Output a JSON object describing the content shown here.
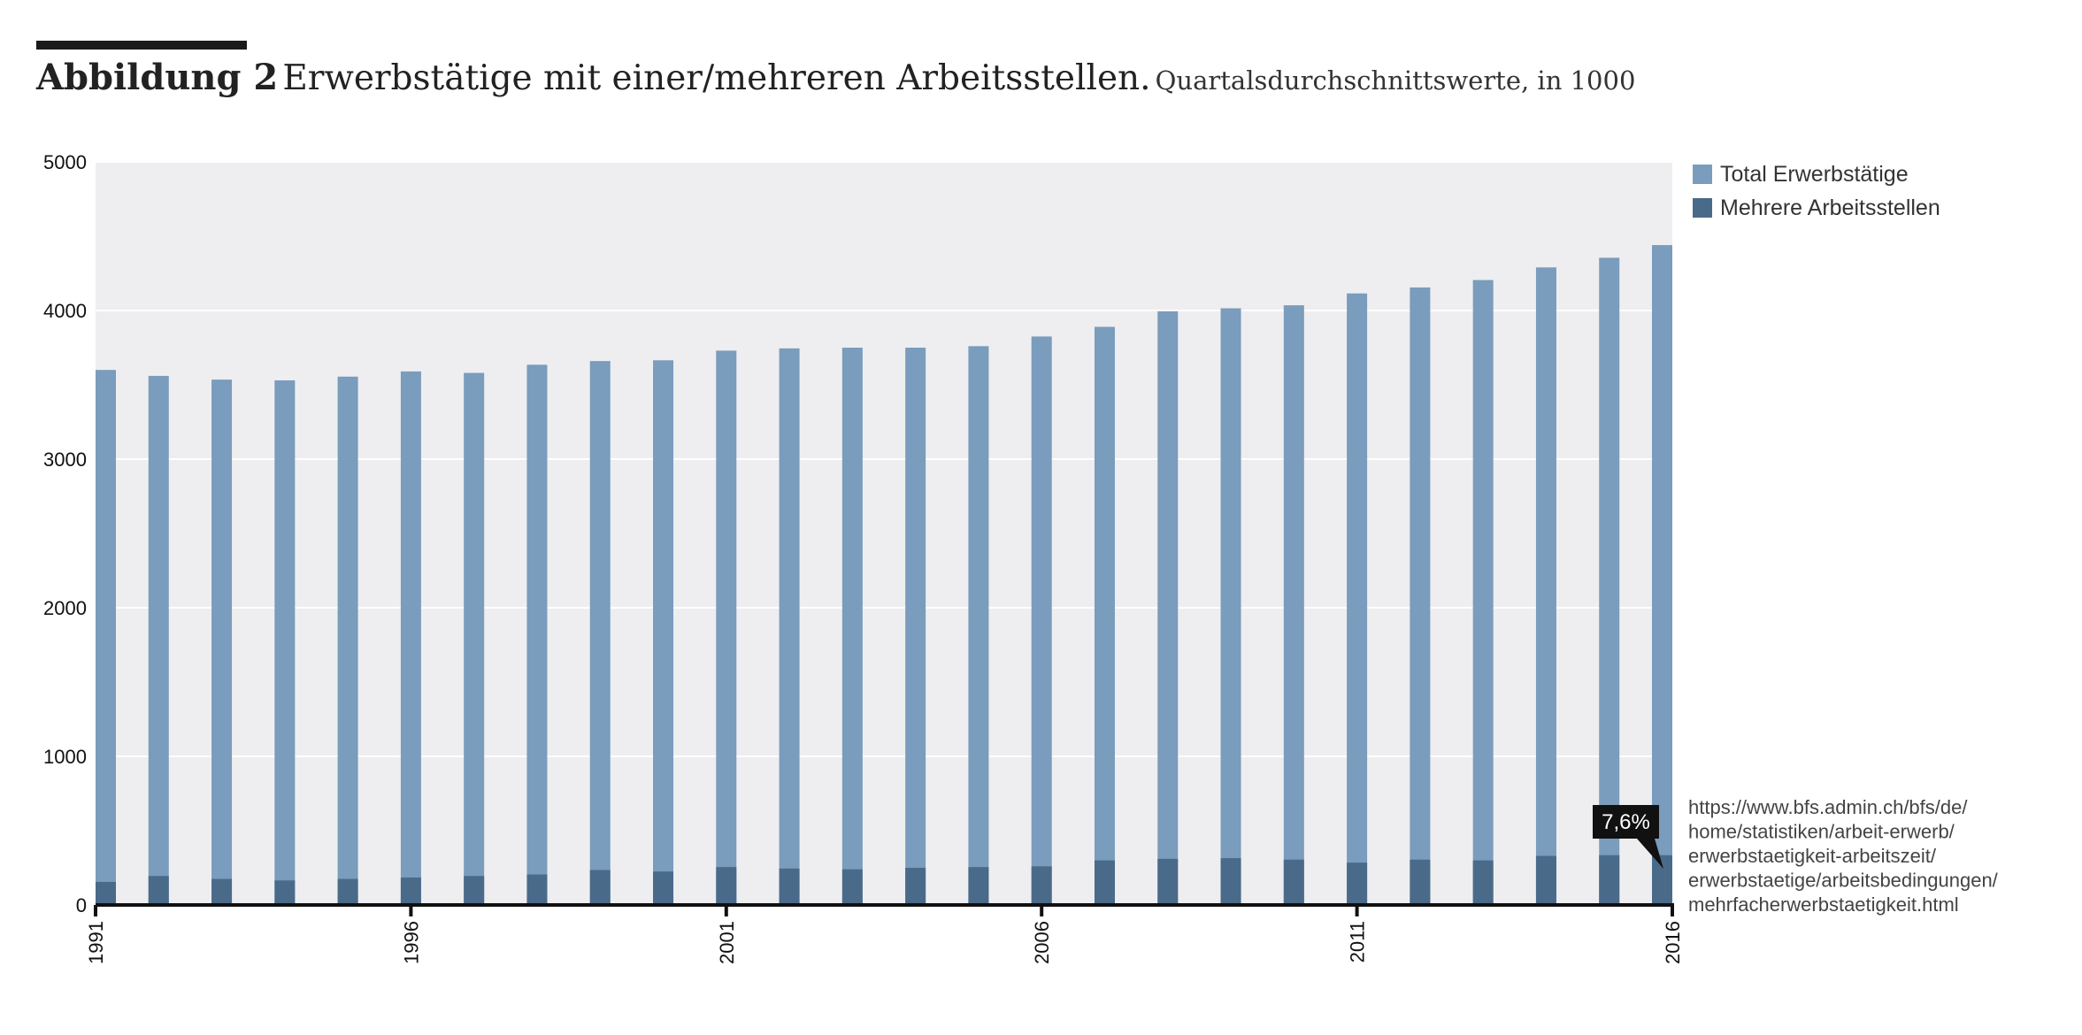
{
  "title": {
    "label": "Abbildung 2",
    "main": "Erwerbstätige mit einer/mehreren Arbeitsstellen.",
    "sub": "Quartalsdurchschnittswerte, in 1000"
  },
  "source_lines": [
    "https://www.bfs.admin.ch/bfs/de/",
    "home/statistiken/arbeit-erwerb/",
    "erwerbstaetigkeit-arbeitszeit/",
    "erwerbstaetige/arbeitsbedingungen/",
    "mehrfacherwerbstaetigkeit.html"
  ],
  "colors": {
    "plot_bg": "#eeeef0",
    "total": "#7a9cbd",
    "mehrere": "#4a6a8a",
    "axis": "#111111",
    "grid": "#ffffff",
    "callout_bg": "#111111",
    "callout_text": "#ffffff"
  },
  "chart_data": {
    "type": "bar",
    "bar_mode": "overlay",
    "categories": [
      "1991",
      "1992",
      "1993",
      "1994",
      "1995",
      "1996",
      "1997",
      "1998",
      "1999",
      "2000",
      "2001",
      "2002",
      "2003",
      "2004",
      "2005",
      "2006",
      "2007",
      "2008",
      "2009",
      "2010",
      "2011",
      "2012",
      "2013",
      "2014",
      "2015",
      "2016"
    ],
    "x_tick_labels": [
      "1991",
      "1996",
      "2001",
      "2006",
      "2011",
      "2016"
    ],
    "series": [
      {
        "name": "Total Erwerbstätige",
        "values": [
          3600,
          3560,
          3535,
          3530,
          3555,
          3590,
          3580,
          3635,
          3660,
          3665,
          3730,
          3745,
          3750,
          3750,
          3760,
          3825,
          3890,
          3995,
          4015,
          4035,
          4115,
          4155,
          4205,
          4290,
          4355,
          4440
        ]
      },
      {
        "name": "Mehrere Arbeitsstellen",
        "values": [
          155,
          195,
          175,
          165,
          175,
          185,
          195,
          205,
          235,
          225,
          255,
          245,
          240,
          250,
          255,
          260,
          300,
          310,
          315,
          305,
          285,
          305,
          300,
          330,
          335,
          335
        ]
      }
    ],
    "ylim": [
      0,
      5000
    ],
    "yticks": [
      0,
      1000,
      2000,
      3000,
      4000,
      5000
    ],
    "grid": true,
    "legend_position": "top-right",
    "annotations": [
      {
        "category": "2016",
        "text": "7,6%"
      }
    ]
  }
}
